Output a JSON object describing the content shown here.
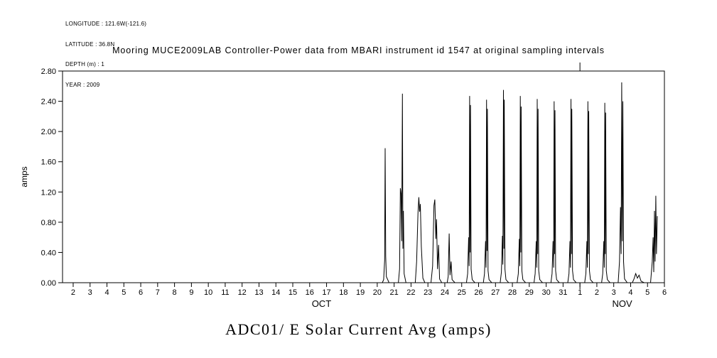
{
  "meta": {
    "lines": [
      "LONGITUDE : 121.6W(-121.6)",
      "LATITUDE : 36.8N",
      "DEPTH (m) : 1",
      "YEAR : 2009"
    ]
  },
  "caption": "ADC01/ E Solar Current Avg (amps)",
  "chart_data": {
    "type": "line",
    "title": "Mooring MUCE2009LAB Controller-Power data from MBARI instrument id 1547 at original sampling intervals",
    "xlabel": "",
    "ylabel": "amps",
    "ylim": [
      0,
      2.8
    ],
    "ytick_step": 0.4,
    "xlim": [
      1.37,
      37
    ],
    "grid": false,
    "line_color": "#000000",
    "x_axis": {
      "months": [
        {
          "name": "OCT",
          "day_offset": 0,
          "label_t": 16.7,
          "days": [
            2,
            3,
            4,
            5,
            6,
            7,
            8,
            9,
            10,
            11,
            12,
            13,
            14,
            15,
            16,
            17,
            18,
            19,
            20,
            21,
            22,
            23,
            24,
            25,
            26,
            27,
            28,
            29,
            30,
            31
          ]
        },
        {
          "name": "NOV",
          "day_offset": 31,
          "label_t": 34.5,
          "days": [
            1,
            2,
            3,
            4,
            5,
            6
          ]
        }
      ],
      "month_boundary_t": 32
    },
    "series": [
      {
        "name": "ADC01/ E Solar Current Avg (amps)",
        "color": "#000000",
        "points": [
          [
            20.3,
            0
          ],
          [
            20.38,
            0.04
          ],
          [
            20.44,
            0.3
          ],
          [
            20.47,
            1.78
          ],
          [
            20.5,
            0.35
          ],
          [
            20.54,
            0.08
          ],
          [
            20.7,
            0
          ],
          [
            21.25,
            0
          ],
          [
            21.32,
            0.18
          ],
          [
            21.37,
            1.25
          ],
          [
            21.41,
            1.18
          ],
          [
            21.45,
            0.55
          ],
          [
            21.49,
            2.5
          ],
          [
            21.52,
            0.45
          ],
          [
            21.55,
            0.95
          ],
          [
            21.59,
            0.12
          ],
          [
            21.7,
            0
          ],
          [
            22.25,
            0
          ],
          [
            22.33,
            0.28
          ],
          [
            22.41,
            0.92
          ],
          [
            22.46,
            1.13
          ],
          [
            22.51,
            0.94
          ],
          [
            22.55,
            1.04
          ],
          [
            22.61,
            0.48
          ],
          [
            22.7,
            0.06
          ],
          [
            22.82,
            0
          ],
          [
            23.18,
            0
          ],
          [
            23.28,
            0.22
          ],
          [
            23.36,
            1.02
          ],
          [
            23.41,
            1.1
          ],
          [
            23.47,
            0.58
          ],
          [
            23.51,
            0.84
          ],
          [
            23.57,
            0.18
          ],
          [
            23.63,
            0.5
          ],
          [
            23.69,
            0.05
          ],
          [
            23.82,
            0
          ],
          [
            24.14,
            0
          ],
          [
            24.2,
            0.08
          ],
          [
            24.26,
            0.65
          ],
          [
            24.31,
            0.1
          ],
          [
            24.37,
            0.28
          ],
          [
            24.43,
            0.04
          ],
          [
            24.6,
            0
          ],
          [
            25.28,
            0
          ],
          [
            25.35,
            0.12
          ],
          [
            25.41,
            0.6
          ],
          [
            25.44,
            0.22
          ],
          [
            25.47,
            2.47
          ],
          [
            25.5,
            0.4
          ],
          [
            25.52,
            2.35
          ],
          [
            25.56,
            0.18
          ],
          [
            25.62,
            0.04
          ],
          [
            25.78,
            0
          ],
          [
            26.28,
            0
          ],
          [
            26.35,
            0.12
          ],
          [
            26.41,
            0.55
          ],
          [
            26.44,
            0.2
          ],
          [
            26.47,
            2.42
          ],
          [
            26.5,
            0.42
          ],
          [
            26.52,
            2.3
          ],
          [
            26.56,
            0.16
          ],
          [
            26.62,
            0.04
          ],
          [
            26.78,
            0
          ],
          [
            27.28,
            0
          ],
          [
            27.35,
            0.14
          ],
          [
            27.41,
            0.62
          ],
          [
            27.44,
            0.24
          ],
          [
            27.47,
            2.55
          ],
          [
            27.5,
            0.45
          ],
          [
            27.52,
            2.42
          ],
          [
            27.56,
            0.18
          ],
          [
            27.62,
            0.04
          ],
          [
            27.78,
            0
          ],
          [
            28.28,
            0
          ],
          [
            28.35,
            0.12
          ],
          [
            28.41,
            0.58
          ],
          [
            28.44,
            0.22
          ],
          [
            28.47,
            2.47
          ],
          [
            28.5,
            0.4
          ],
          [
            28.52,
            2.33
          ],
          [
            28.56,
            0.16
          ],
          [
            28.62,
            0.04
          ],
          [
            28.78,
            0
          ],
          [
            29.28,
            0
          ],
          [
            29.35,
            0.12
          ],
          [
            29.41,
            0.55
          ],
          [
            29.44,
            0.2
          ],
          [
            29.47,
            2.43
          ],
          [
            29.5,
            0.38
          ],
          [
            29.52,
            2.3
          ],
          [
            29.56,
            0.16
          ],
          [
            29.62,
            0.04
          ],
          [
            29.78,
            0
          ],
          [
            30.28,
            0
          ],
          [
            30.35,
            0.12
          ],
          [
            30.41,
            0.55
          ],
          [
            30.44,
            0.2
          ],
          [
            30.47,
            2.4
          ],
          [
            30.5,
            0.38
          ],
          [
            30.52,
            2.28
          ],
          [
            30.56,
            0.16
          ],
          [
            30.62,
            0.04
          ],
          [
            30.78,
            0
          ],
          [
            31.28,
            0
          ],
          [
            31.35,
            0.12
          ],
          [
            31.41,
            0.55
          ],
          [
            31.44,
            0.2
          ],
          [
            31.47,
            2.43
          ],
          [
            31.5,
            0.38
          ],
          [
            31.52,
            2.3
          ],
          [
            31.56,
            0.16
          ],
          [
            31.62,
            0.04
          ],
          [
            31.78,
            0
          ],
          [
            32.28,
            0
          ],
          [
            32.35,
            0.12
          ],
          [
            32.41,
            0.55
          ],
          [
            32.44,
            0.2
          ],
          [
            32.47,
            2.4
          ],
          [
            32.5,
            0.38
          ],
          [
            32.52,
            2.27
          ],
          [
            32.56,
            0.16
          ],
          [
            32.62,
            0.04
          ],
          [
            32.78,
            0
          ],
          [
            33.28,
            0
          ],
          [
            33.35,
            0.12
          ],
          [
            33.41,
            0.55
          ],
          [
            33.44,
            0.2
          ],
          [
            33.47,
            2.38
          ],
          [
            33.5,
            0.38
          ],
          [
            33.52,
            2.25
          ],
          [
            33.56,
            0.16
          ],
          [
            33.62,
            0.04
          ],
          [
            33.78,
            0
          ],
          [
            34.26,
            0
          ],
          [
            34.34,
            0.28
          ],
          [
            34.4,
            1.0
          ],
          [
            34.44,
            0.38
          ],
          [
            34.47,
            2.65
          ],
          [
            34.51,
            0.55
          ],
          [
            34.54,
            2.4
          ],
          [
            34.58,
            0.28
          ],
          [
            34.64,
            0.05
          ],
          [
            34.8,
            0
          ],
          [
            35.1,
            0
          ],
          [
            35.2,
            0.05
          ],
          [
            35.3,
            0.12
          ],
          [
            35.4,
            0.06
          ],
          [
            35.5,
            0.1
          ],
          [
            35.62,
            0.02
          ],
          [
            35.8,
            0
          ],
          [
            36.18,
            0
          ],
          [
            36.28,
            0.28
          ],
          [
            36.33,
            0.6
          ],
          [
            36.37,
            0.14
          ],
          [
            36.41,
            0.95
          ],
          [
            36.45,
            0.28
          ],
          [
            36.49,
            1.15
          ],
          [
            36.53,
            0.38
          ],
          [
            36.58,
            0.88
          ]
        ]
      }
    ]
  }
}
